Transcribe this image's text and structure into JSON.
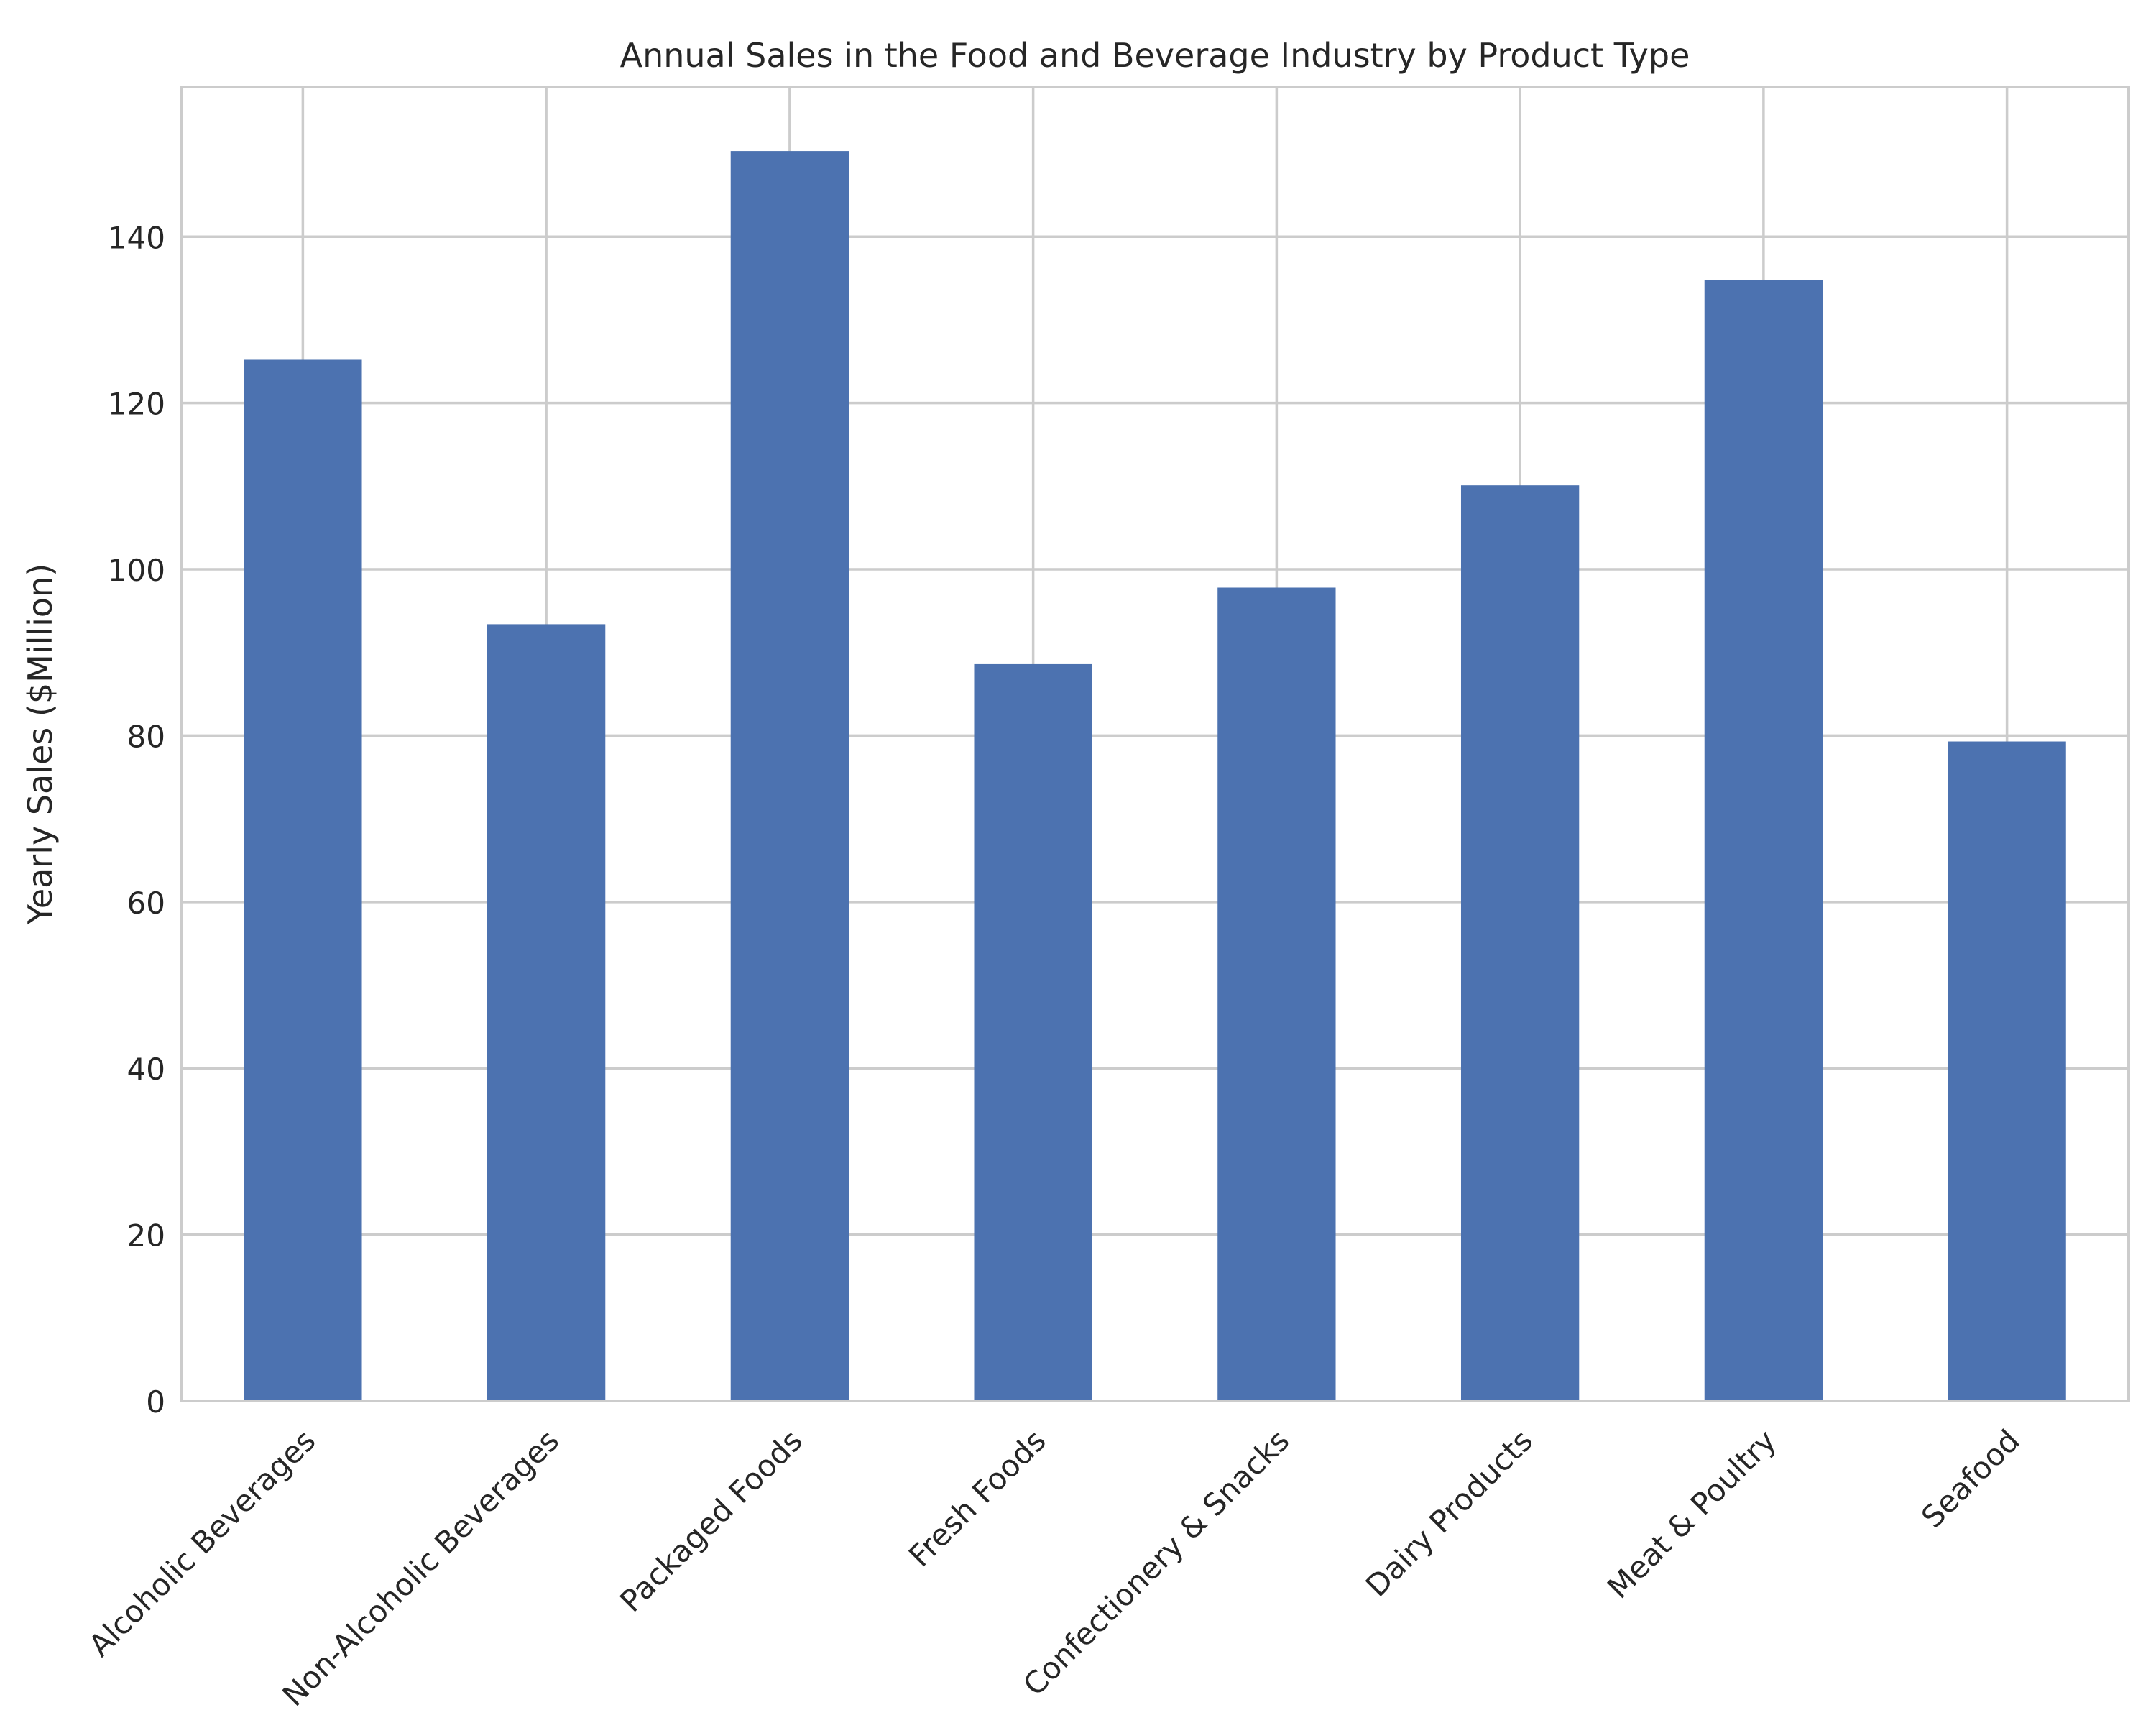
{
  "chart_data": {
    "type": "bar",
    "title": "Annual Sales in the Food and Beverage Industry by Product Type",
    "xlabel": "",
    "ylabel": "Yearly Sales ($Million)",
    "categories": [
      "Alcoholic Beverages",
      "Non-Alcoholic Beverages",
      "Packaged Foods",
      "Fresh Foods",
      "Confectionery & Snacks",
      "Dairy Products",
      "Meat & Poultry",
      "Seafood"
    ],
    "values": [
      125.2,
      93.4,
      150.3,
      88.6,
      97.8,
      110.1,
      134.8,
      79.3
    ],
    "ylim": [
      0,
      158
    ],
    "yticks": [
      0,
      20,
      40,
      60,
      80,
      100,
      120,
      140
    ],
    "grid": true,
    "legend": "none",
    "colors": {
      "bar": "#4c72b0",
      "grid": "#cccccc",
      "axes_edge": "#cccccc",
      "text": "#262626"
    }
  }
}
